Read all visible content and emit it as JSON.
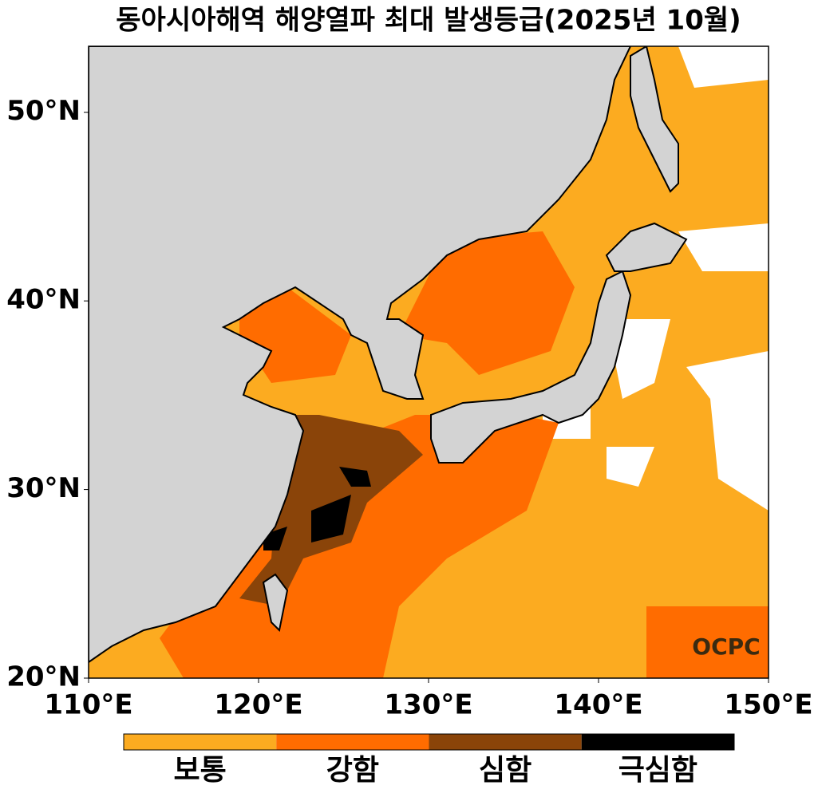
{
  "title": "동아시아해역 해양열파 최대 발생등급(2025년 10월)",
  "map": {
    "xlim": [
      110,
      150
    ],
    "ylim": [
      20,
      53.5
    ],
    "xticks": [
      {
        "value": 110,
        "label": "110°E"
      },
      {
        "value": 120,
        "label": "120°E"
      },
      {
        "value": 130,
        "label": "130°E"
      },
      {
        "value": 140,
        "label": "140°E"
      },
      {
        "value": 150,
        "label": "150°E"
      }
    ],
    "yticks": [
      {
        "value": 20,
        "label": "20°N"
      },
      {
        "value": 30,
        "label": "30°N"
      },
      {
        "value": 40,
        "label": "40°N"
      },
      {
        "value": 50,
        "label": "50°N"
      }
    ]
  },
  "legend": {
    "categories": [
      {
        "label": "보통",
        "color": "#fcab20"
      },
      {
        "label": "강함",
        "color": "#ff6c00"
      },
      {
        "label": "심함",
        "color": "#8a4409"
      },
      {
        "label": "극심함",
        "color": "#000000"
      }
    ]
  },
  "logo": "OCPC"
}
